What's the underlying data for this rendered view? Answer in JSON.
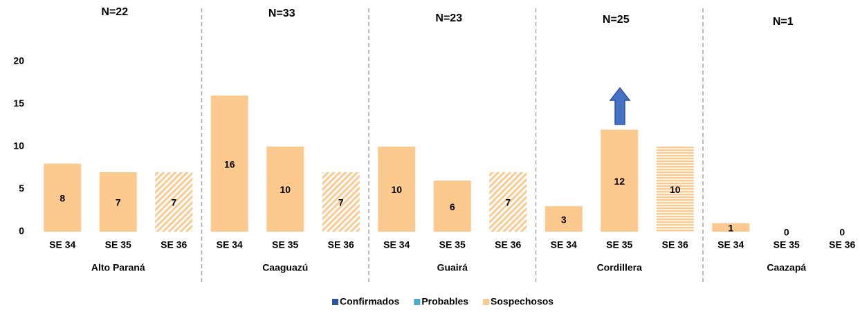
{
  "chart_data": {
    "type": "bar",
    "stacked": true,
    "groups": [
      {
        "name": "Alto Paraná",
        "total_label": "N=22",
        "categories": [
          "SE 34",
          "SE 35",
          "SE 36"
        ]
      },
      {
        "name": "Caaguazú",
        "total_label": "N=33",
        "categories": [
          "SE 34",
          "SE 35",
          "SE 36"
        ]
      },
      {
        "name": "Guairá",
        "total_label": "N=23",
        "categories": [
          "SE 34",
          "SE 35",
          "SE 36"
        ]
      },
      {
        "name": "Cordillera",
        "total_label": "N=25",
        "categories": [
          "SE 34",
          "SE 35",
          "SE 36"
        ]
      },
      {
        "name": "Caazapá",
        "total_label": "N=1",
        "categories": [
          "SE 34",
          "SE 35",
          "SE 36"
        ]
      }
    ],
    "series": [
      {
        "name": "Confirmados",
        "color": "#2f5597",
        "values": [
          0,
          0,
          0,
          0,
          0,
          0,
          0,
          0,
          0,
          0,
          0,
          0,
          0,
          0,
          0
        ]
      },
      {
        "name": "Probables",
        "color": "#4bacc6",
        "values": [
          0,
          0,
          0,
          0,
          0,
          0,
          0,
          0,
          0,
          0,
          0,
          0,
          0,
          0,
          0
        ]
      },
      {
        "name": "Sospechosos",
        "color": "#fcc98f",
        "values": [
          8,
          7,
          7,
          16,
          10,
          7,
          10,
          6,
          7,
          3,
          12,
          10,
          1,
          0,
          0
        ],
        "hatch": [
          "none",
          "none",
          "diagonal",
          "none",
          "none",
          "diagonal",
          "none",
          "none",
          "diagonal",
          "none",
          "none",
          "horizontal",
          "none",
          "none",
          "none"
        ]
      }
    ],
    "ylim": [
      0,
      20
    ],
    "yticks": [
      0,
      5,
      10,
      15,
      20
    ],
    "grid": false,
    "legend": "bottom"
  }
}
